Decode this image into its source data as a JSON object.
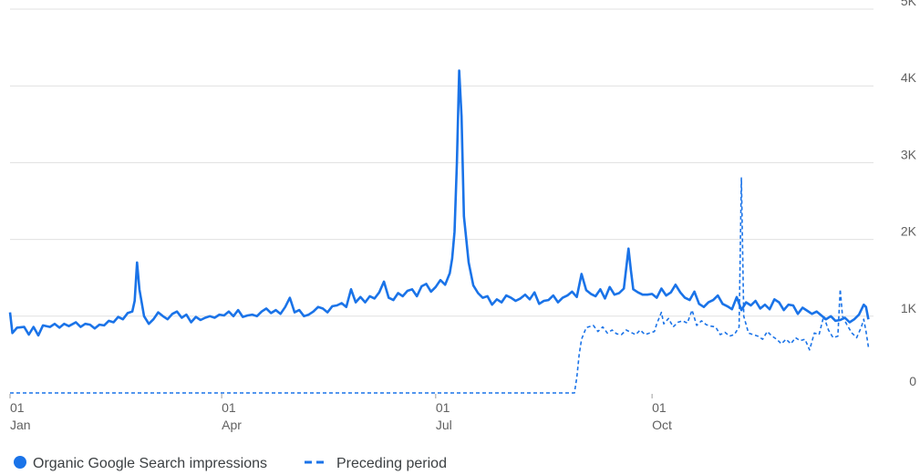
{
  "chart_data": {
    "type": "line",
    "title": "",
    "xlabel": "",
    "ylabel": "",
    "ylim": [
      0,
      5000
    ],
    "y_ticks": [
      {
        "value": 0,
        "label": "0"
      },
      {
        "value": 1000,
        "label": "1K"
      },
      {
        "value": 2000,
        "label": "2K"
      },
      {
        "value": 3000,
        "label": "3K"
      },
      {
        "value": 4000,
        "label": "4K"
      },
      {
        "value": 5000,
        "label": "5K"
      }
    ],
    "y_axis_position": "right",
    "x_ticks": [
      {
        "day": 0,
        "day_label": "01",
        "month_label": "Jan"
      },
      {
        "day": 90,
        "day_label": "01",
        "month_label": "Apr"
      },
      {
        "day": 181,
        "day_label": "01",
        "month_label": "Jul"
      },
      {
        "day": 273,
        "day_label": "01",
        "month_label": "Oct"
      }
    ],
    "xlim": [
      0,
      366
    ],
    "grid": true,
    "legend_position": "bottom-left",
    "colors": {
      "primary": "#1a73e8",
      "grid": "#e0e0e0",
      "tick_text": "#616161"
    },
    "series": [
      {
        "name": "Organic Google Search impressions",
        "style": "solid",
        "points": [
          [
            0,
            1050
          ],
          [
            1,
            780
          ],
          [
            3,
            850
          ],
          [
            6,
            860
          ],
          [
            8,
            760
          ],
          [
            10,
            860
          ],
          [
            12,
            750
          ],
          [
            14,
            880
          ],
          [
            17,
            860
          ],
          [
            19,
            900
          ],
          [
            21,
            850
          ],
          [
            23,
            900
          ],
          [
            25,
            870
          ],
          [
            28,
            920
          ],
          [
            30,
            860
          ],
          [
            32,
            900
          ],
          [
            34,
            890
          ],
          [
            36,
            840
          ],
          [
            38,
            890
          ],
          [
            40,
            880
          ],
          [
            42,
            940
          ],
          [
            44,
            920
          ],
          [
            46,
            990
          ],
          [
            48,
            960
          ],
          [
            50,
            1040
          ],
          [
            52,
            1060
          ],
          [
            53,
            1200
          ],
          [
            54,
            1700
          ],
          [
            55,
            1350
          ],
          [
            57,
            1000
          ],
          [
            59,
            900
          ],
          [
            61,
            960
          ],
          [
            63,
            1050
          ],
          [
            65,
            1000
          ],
          [
            67,
            960
          ],
          [
            69,
            1030
          ],
          [
            71,
            1060
          ],
          [
            73,
            980
          ],
          [
            75,
            1020
          ],
          [
            77,
            920
          ],
          [
            79,
            990
          ],
          [
            81,
            950
          ],
          [
            83,
            980
          ],
          [
            85,
            1000
          ],
          [
            87,
            980
          ],
          [
            89,
            1020
          ],
          [
            91,
            1010
          ],
          [
            93,
            1060
          ],
          [
            95,
            1000
          ],
          [
            97,
            1080
          ],
          [
            99,
            990
          ],
          [
            101,
            1010
          ],
          [
            103,
            1020
          ],
          [
            105,
            1000
          ],
          [
            107,
            1060
          ],
          [
            109,
            1100
          ],
          [
            111,
            1040
          ],
          [
            113,
            1080
          ],
          [
            115,
            1030
          ],
          [
            117,
            1120
          ],
          [
            119,
            1240
          ],
          [
            121,
            1050
          ],
          [
            123,
            1080
          ],
          [
            125,
            1000
          ],
          [
            127,
            1020
          ],
          [
            129,
            1060
          ],
          [
            131,
            1120
          ],
          [
            133,
            1100
          ],
          [
            135,
            1050
          ],
          [
            137,
            1130
          ],
          [
            139,
            1140
          ],
          [
            141,
            1170
          ],
          [
            143,
            1120
          ],
          [
            145,
            1350
          ],
          [
            147,
            1180
          ],
          [
            149,
            1250
          ],
          [
            151,
            1180
          ],
          [
            153,
            1260
          ],
          [
            155,
            1230
          ],
          [
            157,
            1310
          ],
          [
            159,
            1450
          ],
          [
            161,
            1240
          ],
          [
            163,
            1210
          ],
          [
            165,
            1300
          ],
          [
            167,
            1260
          ],
          [
            169,
            1330
          ],
          [
            171,
            1350
          ],
          [
            173,
            1260
          ],
          [
            175,
            1390
          ],
          [
            177,
            1420
          ],
          [
            179,
            1320
          ],
          [
            181,
            1380
          ],
          [
            183,
            1470
          ],
          [
            185,
            1410
          ],
          [
            187,
            1560
          ],
          [
            188,
            1750
          ],
          [
            189,
            2100
          ],
          [
            190,
            3000
          ],
          [
            191,
            4200
          ],
          [
            192,
            3600
          ],
          [
            193,
            2300
          ],
          [
            194,
            2000
          ],
          [
            195,
            1700
          ],
          [
            197,
            1400
          ],
          [
            199,
            1300
          ],
          [
            201,
            1240
          ],
          [
            203,
            1260
          ],
          [
            205,
            1150
          ],
          [
            207,
            1220
          ],
          [
            209,
            1180
          ],
          [
            211,
            1270
          ],
          [
            213,
            1240
          ],
          [
            215,
            1200
          ],
          [
            217,
            1230
          ],
          [
            219,
            1280
          ],
          [
            221,
            1220
          ],
          [
            223,
            1310
          ],
          [
            225,
            1160
          ],
          [
            227,
            1200
          ],
          [
            229,
            1210
          ],
          [
            231,
            1270
          ],
          [
            233,
            1180
          ],
          [
            235,
            1240
          ],
          [
            237,
            1270
          ],
          [
            239,
            1320
          ],
          [
            241,
            1250
          ],
          [
            243,
            1550
          ],
          [
            245,
            1340
          ],
          [
            247,
            1290
          ],
          [
            249,
            1260
          ],
          [
            251,
            1350
          ],
          [
            253,
            1230
          ],
          [
            255,
            1380
          ],
          [
            257,
            1280
          ],
          [
            259,
            1300
          ],
          [
            261,
            1360
          ],
          [
            263,
            1880
          ],
          [
            264,
            1600
          ],
          [
            265,
            1350
          ],
          [
            267,
            1310
          ],
          [
            269,
            1280
          ],
          [
            271,
            1280
          ],
          [
            273,
            1290
          ],
          [
            275,
            1240
          ],
          [
            277,
            1360
          ],
          [
            279,
            1270
          ],
          [
            281,
            1310
          ],
          [
            283,
            1410
          ],
          [
            285,
            1310
          ],
          [
            287,
            1240
          ],
          [
            289,
            1210
          ],
          [
            291,
            1320
          ],
          [
            293,
            1160
          ],
          [
            295,
            1120
          ],
          [
            297,
            1180
          ],
          [
            299,
            1210
          ],
          [
            301,
            1270
          ],
          [
            303,
            1160
          ],
          [
            305,
            1130
          ],
          [
            307,
            1090
          ],
          [
            309,
            1250
          ],
          [
            311,
            1080
          ],
          [
            313,
            1180
          ],
          [
            315,
            1140
          ],
          [
            317,
            1200
          ],
          [
            319,
            1100
          ],
          [
            321,
            1150
          ],
          [
            323,
            1090
          ],
          [
            325,
            1220
          ],
          [
            327,
            1180
          ],
          [
            329,
            1080
          ],
          [
            331,
            1150
          ],
          [
            333,
            1140
          ],
          [
            335,
            1030
          ],
          [
            337,
            1110
          ],
          [
            339,
            1070
          ],
          [
            341,
            1030
          ],
          [
            343,
            1060
          ],
          [
            345,
            1010
          ],
          [
            347,
            960
          ],
          [
            349,
            1000
          ],
          [
            351,
            940
          ],
          [
            353,
            950
          ],
          [
            355,
            980
          ],
          [
            357,
            920
          ],
          [
            359,
            960
          ],
          [
            361,
            1020
          ],
          [
            363,
            1150
          ],
          [
            364,
            1120
          ],
          [
            365,
            960
          ]
        ]
      },
      {
        "name": "Preceding period",
        "style": "dashed",
        "points": [
          [
            0,
            0
          ],
          [
            240,
            0
          ],
          [
            241,
            200
          ],
          [
            242,
            500
          ],
          [
            243,
            700
          ],
          [
            245,
            850
          ],
          [
            248,
            880
          ],
          [
            250,
            800
          ],
          [
            252,
            860
          ],
          [
            254,
            780
          ],
          [
            256,
            820
          ],
          [
            258,
            770
          ],
          [
            260,
            760
          ],
          [
            262,
            820
          ],
          [
            264,
            790
          ],
          [
            266,
            760
          ],
          [
            268,
            820
          ],
          [
            270,
            760
          ],
          [
            272,
            780
          ],
          [
            274,
            800
          ],
          [
            275,
            900
          ],
          [
            277,
            1050
          ],
          [
            278,
            900
          ],
          [
            280,
            970
          ],
          [
            282,
            860
          ],
          [
            284,
            920
          ],
          [
            286,
            940
          ],
          [
            288,
            910
          ],
          [
            290,
            1080
          ],
          [
            292,
            880
          ],
          [
            294,
            940
          ],
          [
            296,
            890
          ],
          [
            298,
            870
          ],
          [
            300,
            860
          ],
          [
            302,
            760
          ],
          [
            304,
            790
          ],
          [
            306,
            740
          ],
          [
            308,
            760
          ],
          [
            310,
            860
          ],
          [
            311,
            2800
          ],
          [
            312,
            1000
          ],
          [
            314,
            780
          ],
          [
            316,
            760
          ],
          [
            318,
            740
          ],
          [
            320,
            700
          ],
          [
            322,
            800
          ],
          [
            324,
            740
          ],
          [
            326,
            700
          ],
          [
            328,
            640
          ],
          [
            330,
            700
          ],
          [
            332,
            640
          ],
          [
            334,
            720
          ],
          [
            336,
            680
          ],
          [
            338,
            700
          ],
          [
            340,
            560
          ],
          [
            342,
            780
          ],
          [
            344,
            760
          ],
          [
            346,
            1000
          ],
          [
            348,
            820
          ],
          [
            350,
            720
          ],
          [
            352,
            740
          ],
          [
            353,
            1350
          ],
          [
            354,
            1000
          ],
          [
            356,
            880
          ],
          [
            358,
            780
          ],
          [
            360,
            720
          ],
          [
            362,
            860
          ],
          [
            363,
            960
          ],
          [
            364,
            800
          ],
          [
            365,
            600
          ]
        ]
      }
    ]
  },
  "legend": {
    "items": [
      {
        "label": "Organic Google Search impressions",
        "marker": "circle"
      },
      {
        "label": "Preceding period",
        "marker": "dash"
      }
    ]
  }
}
